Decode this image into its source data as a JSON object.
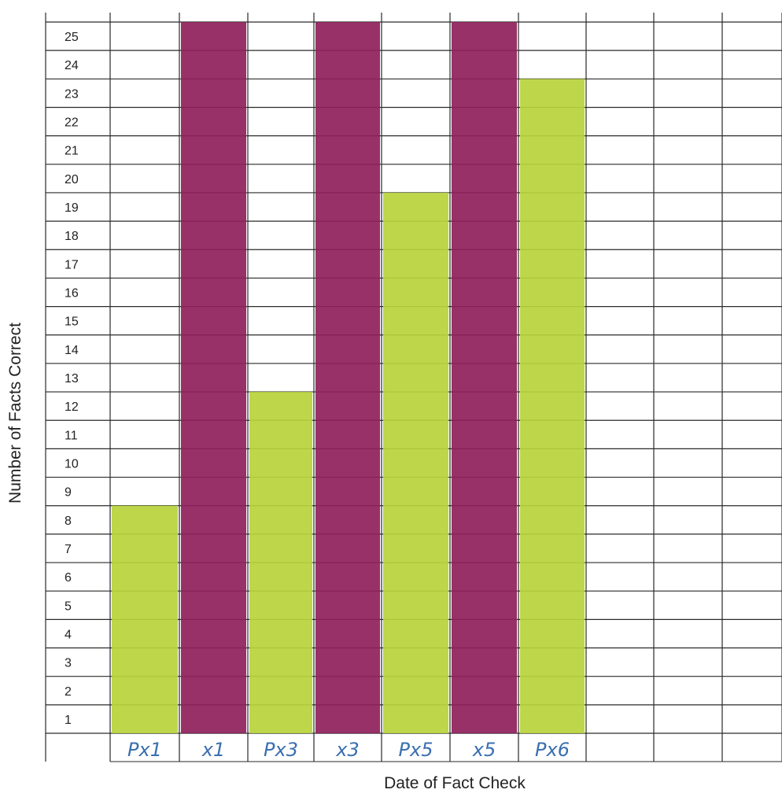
{
  "chart_data": {
    "type": "bar",
    "title": "",
    "xlabel": "Date of Fact Check",
    "ylabel": "Number of Facts Correct",
    "categories": [
      "Px1",
      "x1",
      "Px3",
      "x3",
      "Px5",
      "x5",
      "Px6",
      "",
      "",
      ""
    ],
    "values": [
      8,
      25,
      12,
      25,
      19,
      25,
      23,
      null,
      null,
      null
    ],
    "ylim": [
      0,
      25
    ],
    "yticks": [
      1,
      2,
      3,
      4,
      5,
      6,
      7,
      8,
      9,
      10,
      11,
      12,
      13,
      14,
      15,
      16,
      17,
      18,
      19,
      20,
      21,
      22,
      23,
      24,
      25
    ],
    "grid": true,
    "bar_colors": [
      "#b7d33b",
      "#8e1f5a",
      "#b7d33b",
      "#8e1f5a",
      "#b7d33b",
      "#8e1f5a",
      "#b7d33b"
    ],
    "legend": "none"
  }
}
